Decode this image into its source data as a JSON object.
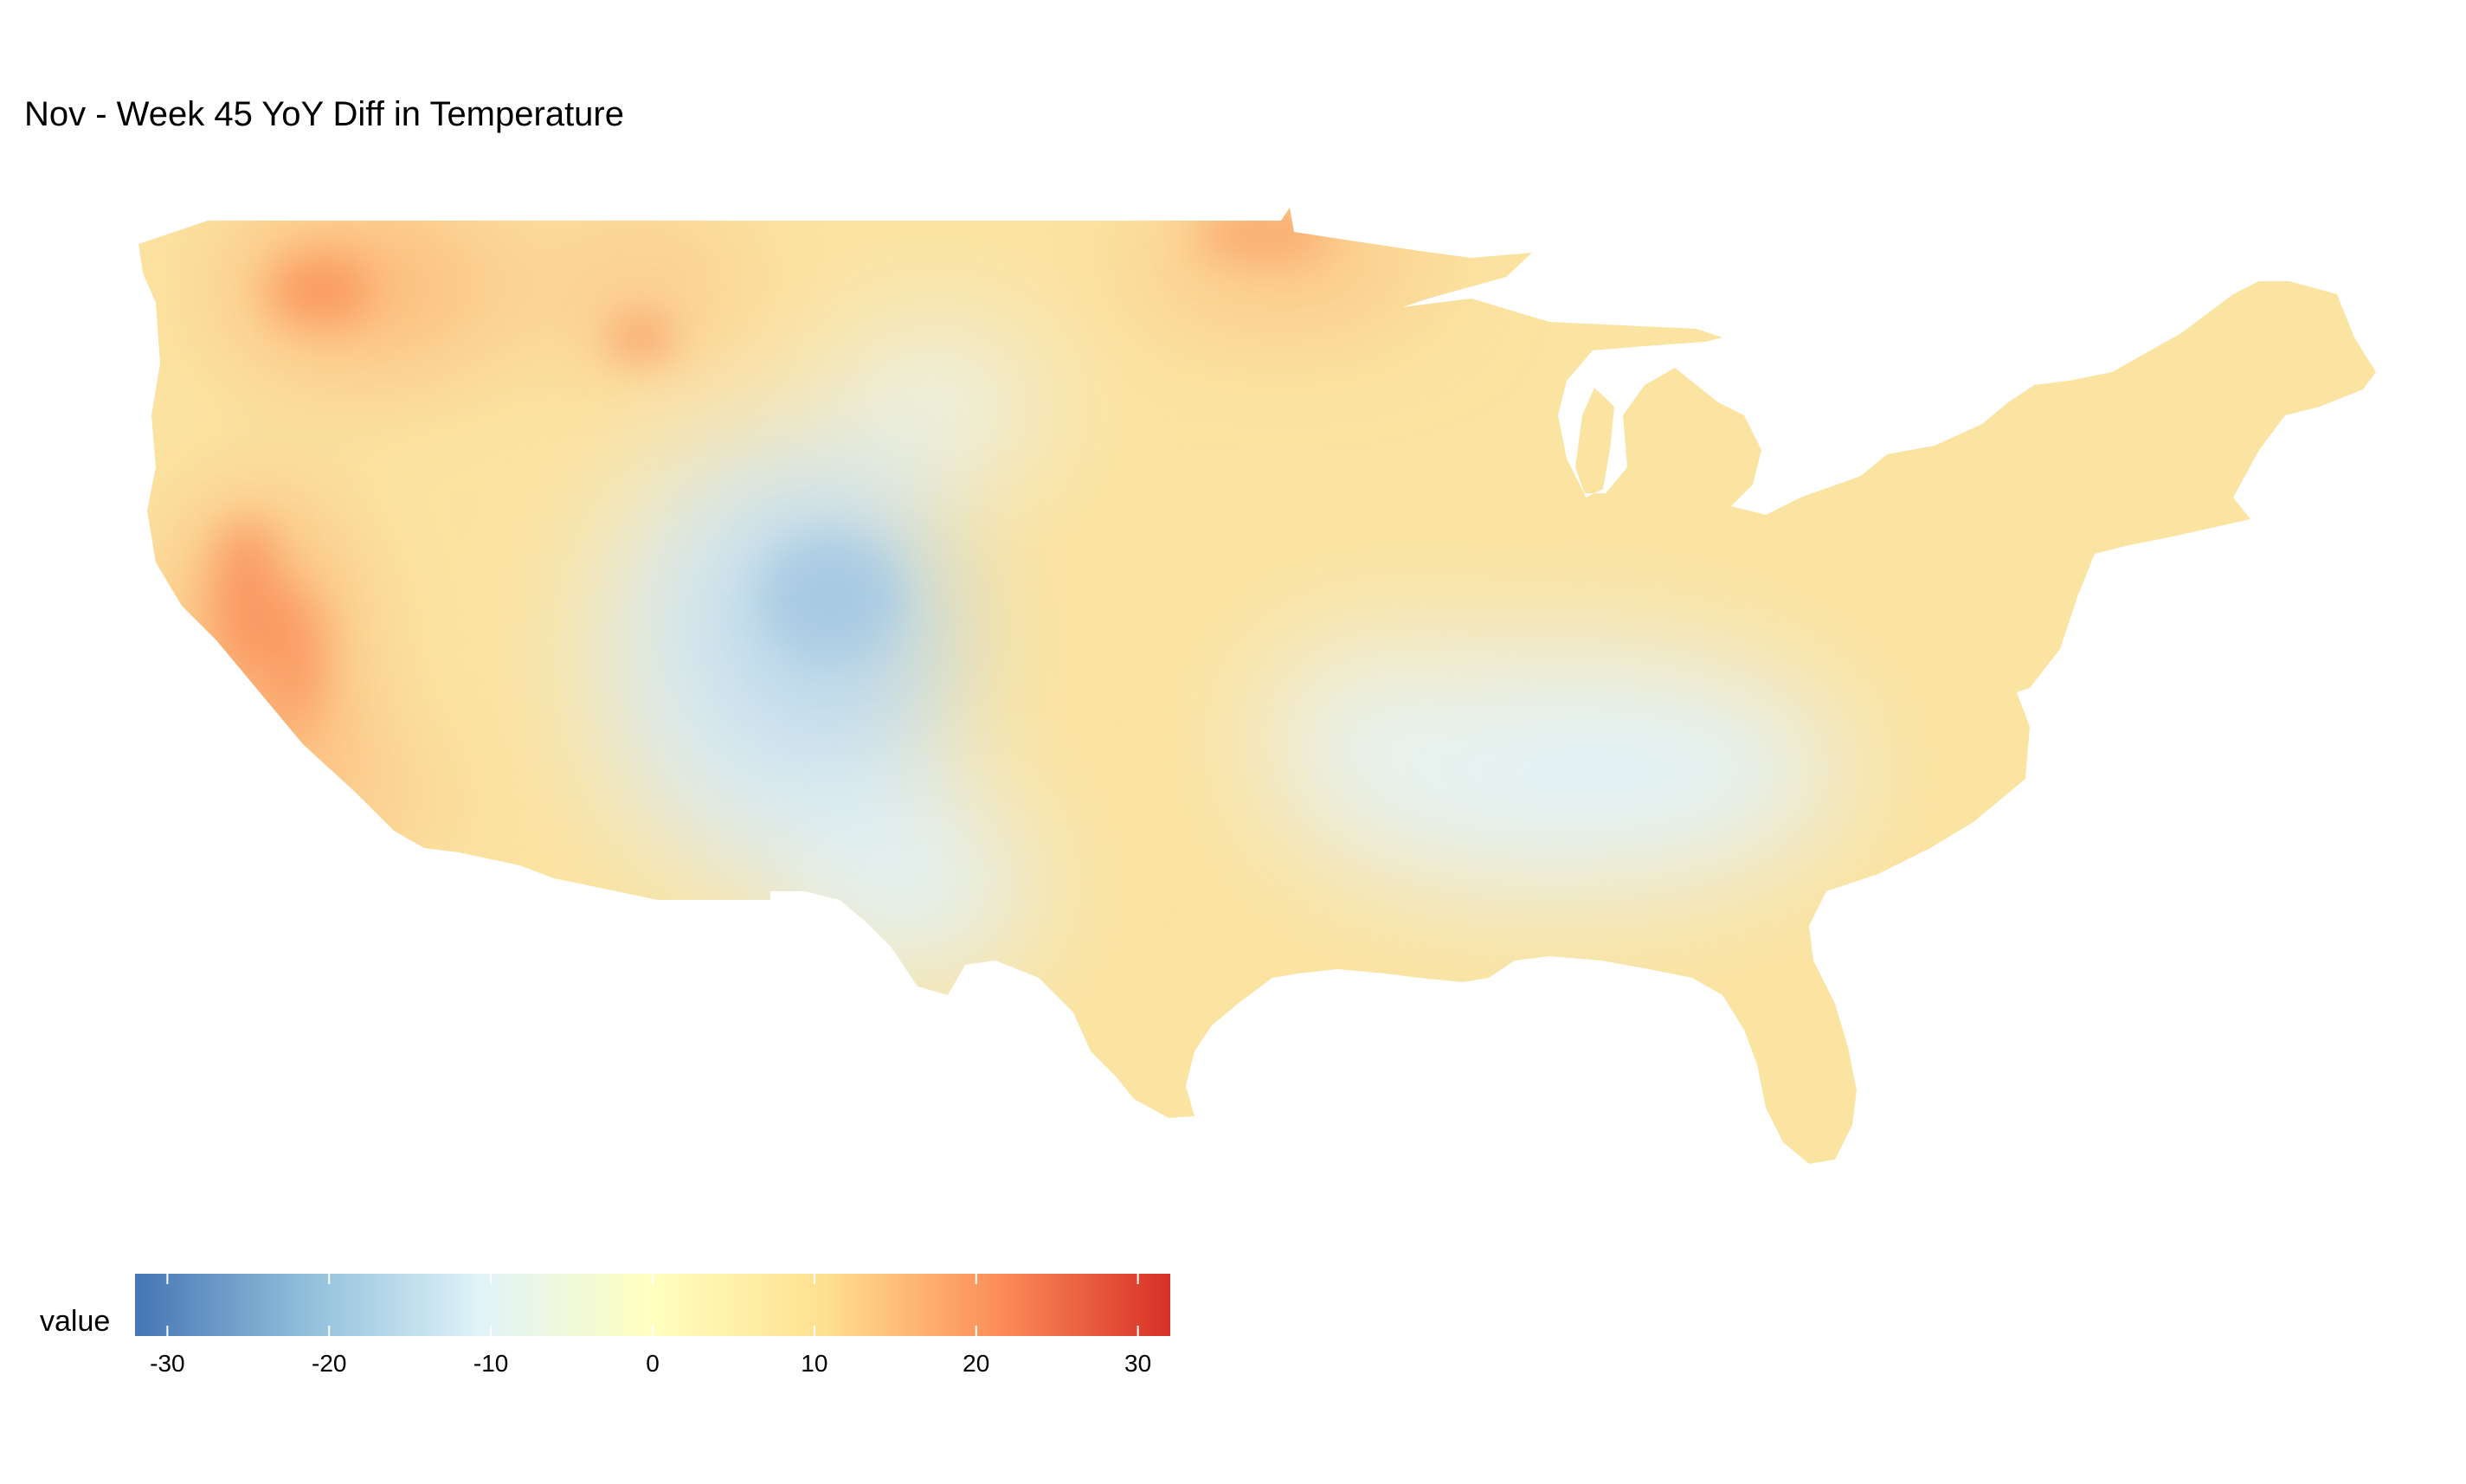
{
  "title": "Nov - Week 45 YoY Diff in Temperature",
  "legend": {
    "title": "value",
    "min": -32,
    "max": 32,
    "ticks": [
      {
        "value": -30,
        "label": "-30"
      },
      {
        "value": -20,
        "label": "-20"
      },
      {
        "value": -10,
        "label": "-10"
      },
      {
        "value": 0,
        "label": "0"
      },
      {
        "value": 10,
        "label": "10"
      },
      {
        "value": 20,
        "label": "20"
      },
      {
        "value": 30,
        "label": "30"
      }
    ],
    "palette": [
      "#4575b4",
      "#91bfdb",
      "#e0f3f8",
      "#ffffbf",
      "#fee090",
      "#fc8d59",
      "#d73027"
    ]
  },
  "map": {
    "region": "Contiguous United States",
    "baseline_color": "#fbe3a1",
    "variable": "YoY temperature difference",
    "regions_of_note": [
      {
        "name": "northern-rockies",
        "approx_value": 14
      },
      {
        "name": "california-central-valley",
        "approx_value": 15
      },
      {
        "name": "great-lakes-north",
        "approx_value": 12
      },
      {
        "name": "colorado-utah",
        "approx_value": -8
      },
      {
        "name": "tennessee-ohio-valley",
        "approx_value": -3
      },
      {
        "name": "southeast",
        "approx_value": 5
      },
      {
        "name": "northeast",
        "approx_value": 6
      }
    ]
  }
}
